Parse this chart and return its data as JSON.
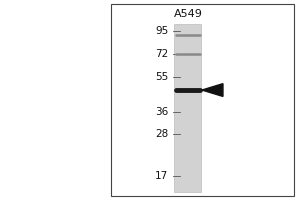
{
  "bg_color": "#ffffff",
  "panel_bg": "#ffffff",
  "lane_color_top": "#d0d0d0",
  "lane_color": "#c8c8c8",
  "cell_line_label": "A549",
  "mw_markers": [
    95,
    72,
    55,
    36,
    28,
    17
  ],
  "band_mw": 47,
  "faint_band_mws": [
    90,
    72
  ],
  "title_fontsize": 8,
  "marker_fontsize": 7.5,
  "border_color": "#444444",
  "band_color": "#1a1a1a",
  "faint_band_color": "#888888",
  "arrow_color": "#111111",
  "mw_min": 14,
  "mw_max": 108
}
